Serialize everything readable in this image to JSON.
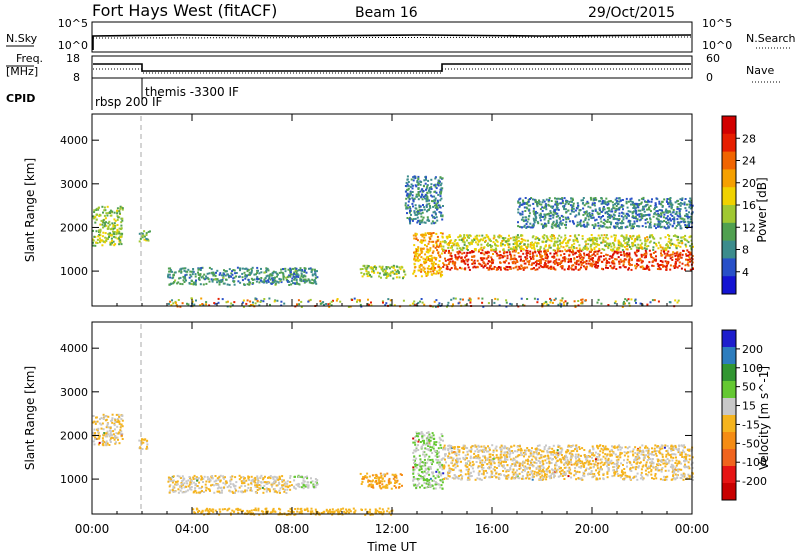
{
  "header": {
    "station": "Fort Hays West (fitACF)",
    "beam": "Beam 16",
    "date": "29/Oct/2015"
  },
  "nsky_panel": {
    "left_label": "N.Sky",
    "right_label": "N.Search",
    "left_ticks": [
      "10^5",
      "10^0"
    ],
    "right_ticks": [
      "10^5",
      "10^0"
    ]
  },
  "freq_panel": {
    "left_label_1": "Freq.",
    "left_label_2": "[MHz]",
    "left_ticks": [
      "18",
      "8"
    ],
    "right_label": "Nave",
    "right_ticks": [
      "60",
      "0"
    ]
  },
  "cpid_panel": {
    "label": "CPID",
    "modes": [
      {
        "text": "rbsp 200 IF",
        "start_hour": 0.0
      },
      {
        "text": "themis -3300 IF",
        "start_hour": 2.0
      }
    ]
  },
  "x_axis": {
    "label": "Time UT",
    "ticks": [
      "00:00",
      "04:00",
      "08:00",
      "12:00",
      "16:00",
      "20:00",
      "00:00"
    ]
  },
  "power_panel": {
    "ylabel": "Slant Range [km]",
    "yticks": [
      "1000",
      "2000",
      "3000",
      "4000"
    ],
    "colorbar_label": "Power [dB]",
    "colorbar_ticks": [
      "4",
      "8",
      "12",
      "16",
      "20",
      "24",
      "28"
    ]
  },
  "velocity_panel": {
    "ylabel": "Slant Range [km]",
    "yticks": [
      "1000",
      "2000",
      "3000",
      "4000"
    ],
    "colorbar_label": "Velocity [m s^-1]",
    "colorbar_ticks": [
      "200",
      "100",
      "50",
      "15",
      "-15",
      "-50",
      "-100",
      "-200"
    ]
  },
  "chart_data": {
    "type": "heatmap",
    "title": "Fort Hays West (fitACF)",
    "subtitle": "Beam 16",
    "xlabel": "Time UT",
    "ylabel": "Slant Range [km]",
    "x_range_hours": [
      0,
      24
    ],
    "y_range_km": [
      200,
      4600
    ],
    "power": {
      "colorbar": "Power [dB]",
      "range": [
        0,
        32
      ],
      "colors": [
        "#1414d2",
        "#2850c8",
        "#3c8c8c",
        "#50a050",
        "#a0c832",
        "#f0d200",
        "#f5a000",
        "#f06400",
        "#e61e00",
        "#d20000"
      ],
      "regions": [
        {
          "t0": 0.0,
          "t1": 1.2,
          "r0": 1600,
          "r1": 2500,
          "level": 14
        },
        {
          "t0": 1.85,
          "t1": 2.3,
          "r0": 1700,
          "r1": 1950,
          "level": 13
        },
        {
          "t0": 3.0,
          "t1": 9.0,
          "r0": 700,
          "r1": 1100,
          "level": 9
        },
        {
          "t0": 10.7,
          "t1": 12.5,
          "r0": 850,
          "r1": 1150,
          "level": 14
        },
        {
          "t0": 12.8,
          "t1": 14.0,
          "r0": 900,
          "r1": 1900,
          "level": 20
        },
        {
          "t0": 14.0,
          "t1": 24.0,
          "r0": 1050,
          "r1": 1500,
          "level": 26
        },
        {
          "t0": 14.0,
          "t1": 24.0,
          "r0": 1500,
          "r1": 1850,
          "level": 16
        },
        {
          "t0": 17.0,
          "t1": 24.0,
          "r0": 2000,
          "r1": 2700,
          "level": 8
        },
        {
          "t0": 12.5,
          "t1": 14.0,
          "r0": 2100,
          "r1": 3200,
          "level": 8
        }
      ]
    },
    "velocity": {
      "colorbar": "Velocity [m s^-1]",
      "range": [
        -200,
        200
      ],
      "colors": [
        "#1e1ecd",
        "#2d7dbe",
        "#329632",
        "#64c832",
        "#c8c8c8",
        "#f5b41e",
        "#f58c14",
        "#f0641e",
        "#e61414",
        "#c80000"
      ],
      "regions": [
        {
          "t0": 0.0,
          "t1": 1.2,
          "r0": 1800,
          "r1": 2500,
          "velocity": 0
        },
        {
          "t0": 1.85,
          "t1": 2.3,
          "r0": 1700,
          "r1": 1950,
          "velocity": 0
        },
        {
          "t0": 3.0,
          "t1": 8.0,
          "r0": 700,
          "r1": 1100,
          "velocity": 0
        },
        {
          "t0": 8.0,
          "t1": 9.0,
          "r0": 800,
          "r1": 1100,
          "velocity": 35
        },
        {
          "t0": 10.7,
          "t1": 12.4,
          "r0": 800,
          "r1": 1150,
          "velocity": -40
        },
        {
          "t0": 12.8,
          "t1": 14.0,
          "r0": 800,
          "r1": 2100,
          "velocity": 40
        },
        {
          "t0": 14.0,
          "t1": 24.0,
          "r0": 1000,
          "r1": 1800,
          "velocity": 0
        },
        {
          "t0": 4.0,
          "t1": 12.0,
          "r0": 200,
          "r1": 350,
          "velocity": -30
        }
      ]
    }
  }
}
